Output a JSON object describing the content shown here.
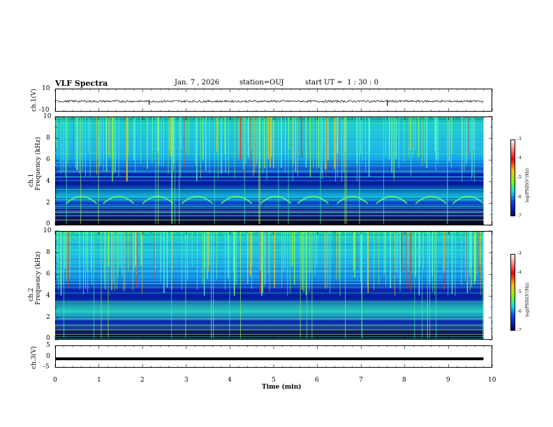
{
  "header": {
    "title": "VLF Spectra",
    "date": "Jan. 7 , 2026",
    "station": "station=OUJ",
    "start": "start UT =  1 : 30 : 0"
  },
  "panels": {
    "ch1_waveform": {
      "ylabel": "ch.1(V)",
      "ticks": [
        "10",
        "-10"
      ]
    },
    "ch1_spec": {
      "ylabel_top": "ch.1",
      "ylabel": "Frequency (kHz)",
      "ticks": [
        "10",
        "8",
        "6",
        "4",
        "2",
        "0"
      ]
    },
    "ch2_spec": {
      "ylabel_top": "ch.2",
      "ylabel": "Frequency (kHz)",
      "ticks": [
        "10",
        "8",
        "6",
        "4",
        "2",
        "0"
      ]
    },
    "ch3_waveform": {
      "ylabel": "ch.3(V)",
      "ticks": [
        "5",
        "0",
        "-5"
      ]
    }
  },
  "colorbar": {
    "label": "log(PSD)(V²/Hz)",
    "ticks": [
      "-3",
      "-4",
      "-5",
      "-6",
      "-7"
    ],
    "colors": [
      "#ffffff",
      "#ff0000",
      "#ffbf00",
      "#7fff00",
      "#00e5e5",
      "#0040ff",
      "#000080"
    ]
  },
  "xaxis": {
    "label": "Time (min)",
    "ticks": [
      "0",
      "1",
      "2",
      "3",
      "4",
      "5",
      "6",
      "7",
      "8",
      "9",
      "10"
    ]
  },
  "chart_data": [
    {
      "type": "line",
      "name": "ch.1 waveform",
      "ylabel": "ch.1(V)",
      "ylim": [
        -10,
        10
      ],
      "xlim": [
        0,
        10
      ],
      "x": [
        0,
        2.15,
        5.2,
        7.6,
        9.8
      ],
      "y": [
        -1,
        -4,
        -2,
        -5,
        -1
      ]
    },
    {
      "type": "heatmap",
      "name": "ch.1 spectrogram",
      "xlabel": "",
      "ylabel": "Frequency (kHz)",
      "xlim": [
        0,
        9.8
      ],
      "ylim": [
        0,
        10
      ],
      "zlabel": "log(PSD)(V²/Hz)",
      "zlim": [
        -7,
        -3
      ],
      "bands_khz": [
        {
          "f": [
            0,
            1
          ],
          "level": -6.8
        },
        {
          "f": [
            1,
            2
          ],
          "level": -6.2
        },
        {
          "f": [
            2,
            2.5
          ],
          "level": -5.3
        },
        {
          "f": [
            2.5,
            4.8
          ],
          "level": -6.6
        },
        {
          "f": [
            4.8,
            10
          ],
          "level": -5.0
        }
      ],
      "whistler_hump_times_min": [
        0.6,
        1.45,
        2.35,
        3.25,
        4.15,
        5.05,
        5.9,
        6.8,
        7.7,
        8.6,
        9.45
      ]
    },
    {
      "type": "heatmap",
      "name": "ch.2 spectrogram",
      "xlabel": "",
      "ylabel": "Frequency (kHz)",
      "xlim": [
        0,
        9.8
      ],
      "ylim": [
        0,
        10
      ],
      "zlabel": "log(PSD)(V²/Hz)",
      "zlim": [
        -7,
        -3
      ],
      "bands_khz": [
        {
          "f": [
            0,
            1.5
          ],
          "level": -6.8
        },
        {
          "f": [
            1.5,
            3.8
          ],
          "level": -5.4
        },
        {
          "f": [
            3.8,
            6.5
          ],
          "level": -6.3
        },
        {
          "f": [
            6.5,
            10
          ],
          "level": -5.0
        }
      ]
    },
    {
      "type": "line",
      "name": "ch.3 waveform",
      "ylabel": "ch.3(V)",
      "ylim": [
        -5,
        5
      ],
      "xlim": [
        0,
        9.8
      ],
      "x": [
        0,
        9.8
      ],
      "y": [
        -1,
        -1
      ]
    }
  ]
}
